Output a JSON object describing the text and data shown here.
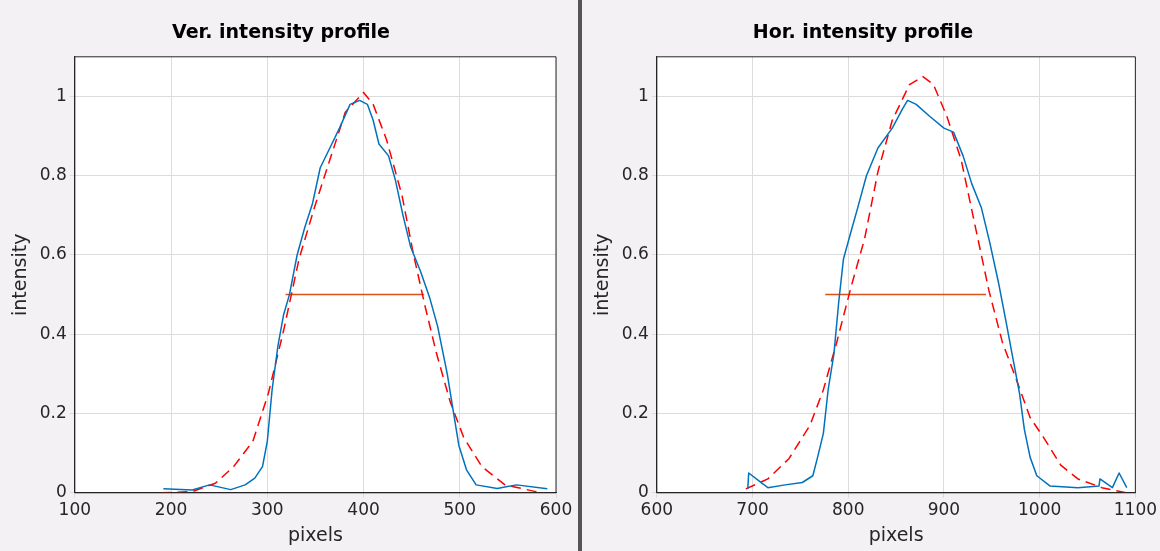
{
  "chart_data": [
    {
      "type": "line",
      "title": "Ver. intensity profile",
      "xlabel": "pixels",
      "ylabel": "intensity",
      "xlim": [
        100,
        600
      ],
      "ylim": [
        0,
        1.1
      ],
      "xticks": [
        100,
        200,
        300,
        400,
        500,
        600
      ],
      "yticks": [
        0,
        0.2,
        0.4,
        0.6,
        0.8,
        1
      ],
      "grid": true,
      "legend": false,
      "series": [
        {
          "color": "#0072bd",
          "line_style": "solid",
          "x": [
            192,
            222,
            240,
            262,
            277,
            287,
            295,
            300,
            305,
            311,
            317,
            323,
            331,
            339,
            347,
            355,
            365,
            375,
            386,
            396,
            404,
            410,
            416,
            426,
            433,
            441,
            449,
            459,
            469,
            477,
            487,
            493,
            499,
            507,
            517,
            539,
            559,
            591
          ],
          "values": [
            0.01,
            0.007,
            0.02,
            0.008,
            0.02,
            0.037,
            0.066,
            0.13,
            0.26,
            0.37,
            0.45,
            0.5,
            0.6,
            0.67,
            0.73,
            0.82,
            0.87,
            0.92,
            0.98,
            0.99,
            0.98,
            0.94,
            0.88,
            0.85,
            0.79,
            0.7,
            0.62,
            0.56,
            0.49,
            0.42,
            0.3,
            0.21,
            0.12,
            0.058,
            0.02,
            0.011,
            0.02,
            0.01
          ]
        },
        {
          "color": "#ff0000",
          "line_style": "dashed",
          "x": [
            190,
            222,
            246,
            265,
            285,
            301,
            317,
            333,
            349,
            365,
            381,
            400,
            410,
            424,
            440,
            452,
            464,
            476,
            490,
            504,
            523,
            547,
            579,
            587
          ],
          "values": [
            0,
            0.003,
            0.024,
            0.066,
            0.13,
            0.25,
            0.41,
            0.59,
            0.72,
            0.84,
            0.96,
            1.01,
            0.98,
            0.89,
            0.75,
            0.6,
            0.47,
            0.35,
            0.23,
            0.14,
            0.066,
            0.02,
            0.003,
            0
          ]
        },
        {
          "color": "#d95319",
          "line_style": "solid",
          "x": [
            319,
            463
          ],
          "values": [
            0.5,
            0.5
          ]
        }
      ]
    },
    {
      "type": "line",
      "title": "Hor. intensity profile",
      "xlabel": "pixels",
      "ylabel": "intensity",
      "xlim": [
        600,
        1100
      ],
      "ylim": [
        0,
        1.1
      ],
      "xticks": [
        600,
        700,
        800,
        900,
        1000,
        1100
      ],
      "yticks": [
        0,
        0.2,
        0.4,
        0.6,
        0.8,
        1
      ],
      "grid": true,
      "legend": false,
      "series": [
        {
          "color": "#0072bd",
          "line_style": "solid",
          "x": [
            695,
            696,
            716,
            734,
            752,
            763,
            768,
            774,
            779,
            785,
            790,
            795,
            803,
            810,
            819,
            831,
            846,
            857,
            862,
            871,
            885,
            900,
            910,
            920,
            929,
            939,
            948,
            957,
            965,
            972,
            979,
            984,
            990,
            997,
            1011,
            1040,
            1062,
            1063,
            1076,
            1083,
            1091
          ],
          "values": [
            0.01,
            0.05,
            0.013,
            0.02,
            0.026,
            0.043,
            0.09,
            0.15,
            0.26,
            0.35,
            0.48,
            0.59,
            0.66,
            0.72,
            0.8,
            0.87,
            0.92,
            0.97,
            0.99,
            0.98,
            0.95,
            0.92,
            0.91,
            0.85,
            0.78,
            0.72,
            0.63,
            0.53,
            0.43,
            0.34,
            0.25,
            0.16,
            0.09,
            0.043,
            0.017,
            0.013,
            0.017,
            0.035,
            0.013,
            0.05,
            0.013
          ]
        },
        {
          "color": "#ff0000",
          "line_style": "dashed",
          "x": [
            693,
            716,
            738,
            760,
            774,
            788,
            803,
            817,
            831,
            846,
            864,
            878,
            889,
            903,
            918,
            932,
            947,
            961,
            975,
            990,
            1004,
            1022,
            1040,
            1065,
            1091
          ],
          "values": [
            0.01,
            0.035,
            0.086,
            0.17,
            0.26,
            0.38,
            0.52,
            0.64,
            0.81,
            0.94,
            1.03,
            1.05,
            1.03,
            0.95,
            0.84,
            0.68,
            0.51,
            0.38,
            0.29,
            0.19,
            0.14,
            0.07,
            0.035,
            0.013,
            0
          ]
        },
        {
          "color": "#d95319",
          "line_style": "solid",
          "x": [
            776,
            944
          ],
          "values": [
            0.5,
            0.5
          ]
        }
      ]
    }
  ]
}
